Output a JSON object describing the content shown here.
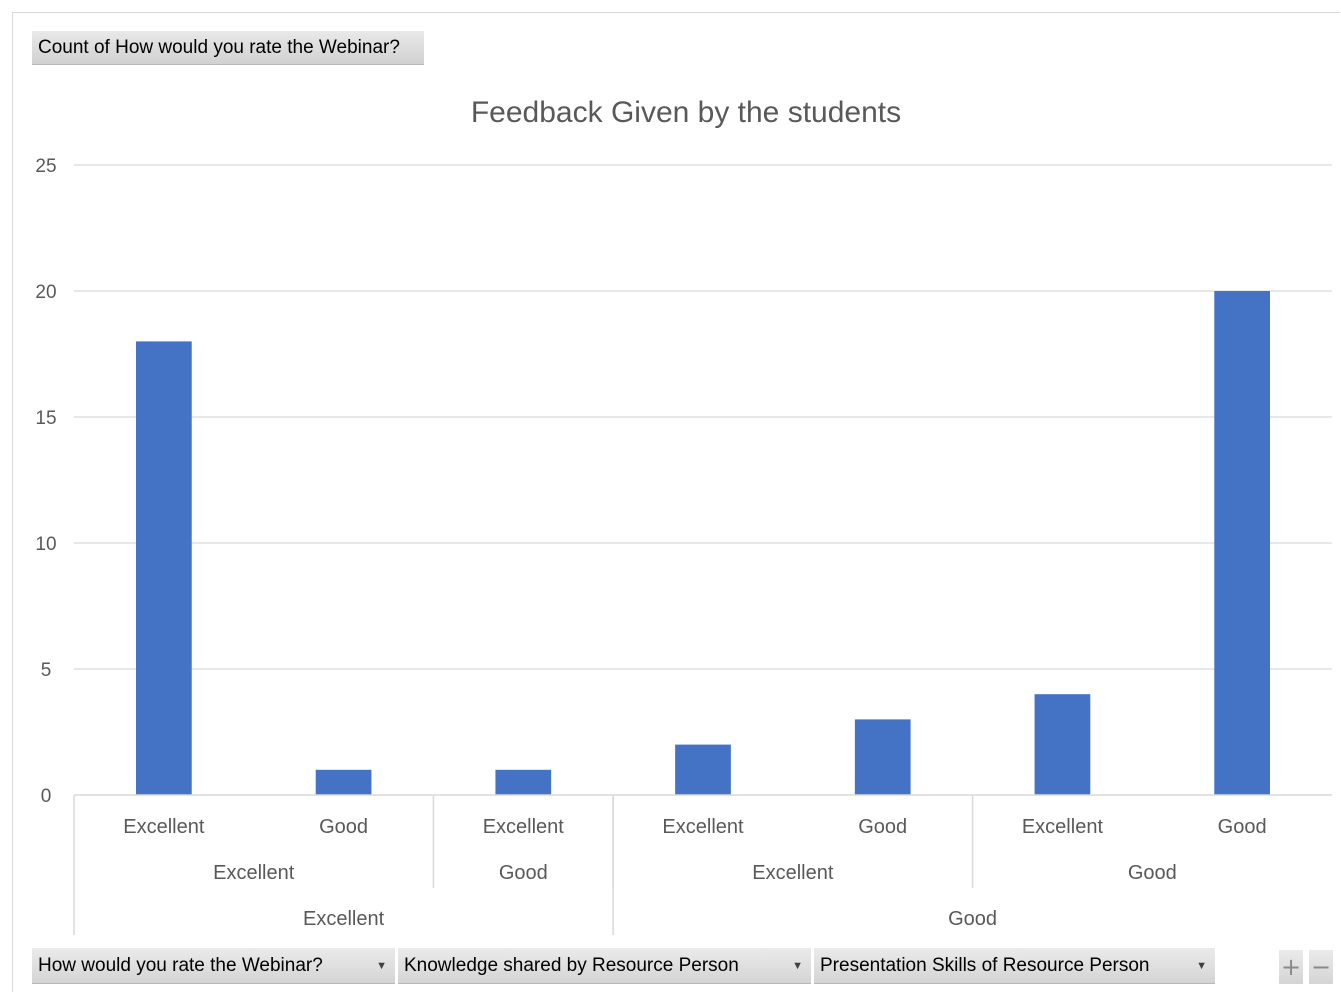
{
  "value_field": {
    "label": "Count of How would you rate the Webinar?"
  },
  "axis_field_buttons": [
    {
      "label": "How would you rate the Webinar?",
      "icon": "dropdown-caret-icon"
    },
    {
      "label": "Knowledge shared  by Resource Person",
      "icon": "dropdown-caret-icon"
    },
    {
      "label": "Presentation Skills of Resource Person",
      "icon": "dropdown-caret-icon"
    }
  ],
  "zoom_controls": {
    "expand": "+",
    "collapse": "−"
  },
  "colors": {
    "bar": "#4472C4",
    "grid": "#d9d9d9",
    "text": "#595959"
  },
  "chart_data": {
    "type": "bar",
    "title": "Feedback Given by the students",
    "xlabel": "",
    "ylabel": "",
    "ylim": [
      0,
      25
    ],
    "yticks": [
      0,
      5,
      10,
      15,
      20,
      25
    ],
    "grid": true,
    "legend": "none",
    "categories": [
      [
        "Excellent",
        "Excellent",
        "Excellent"
      ],
      [
        "Excellent",
        "Excellent",
        "Good"
      ],
      [
        "Excellent",
        "Good",
        "Excellent"
      ],
      [
        "Good",
        "Excellent",
        "Excellent"
      ],
      [
        "Good",
        "Excellent",
        "Good"
      ],
      [
        "Good",
        "Good",
        "Excellent"
      ],
      [
        "Good",
        "Good",
        "Good"
      ]
    ],
    "level3_labels": [
      "Excellent",
      "Good",
      "Excellent",
      "Excellent",
      "Good",
      "Excellent",
      "Good"
    ],
    "level2_groups": [
      {
        "label": "Excellent",
        "span": 2
      },
      {
        "label": "Good",
        "span": 1
      },
      {
        "label": "Excellent",
        "span": 2
      },
      {
        "label": "Good",
        "span": 2
      }
    ],
    "level1_groups": [
      {
        "label": "Excellent",
        "span": 3
      },
      {
        "label": "Good",
        "span": 4
      }
    ],
    "values": [
      18,
      1,
      1,
      2,
      3,
      4,
      20
    ]
  }
}
